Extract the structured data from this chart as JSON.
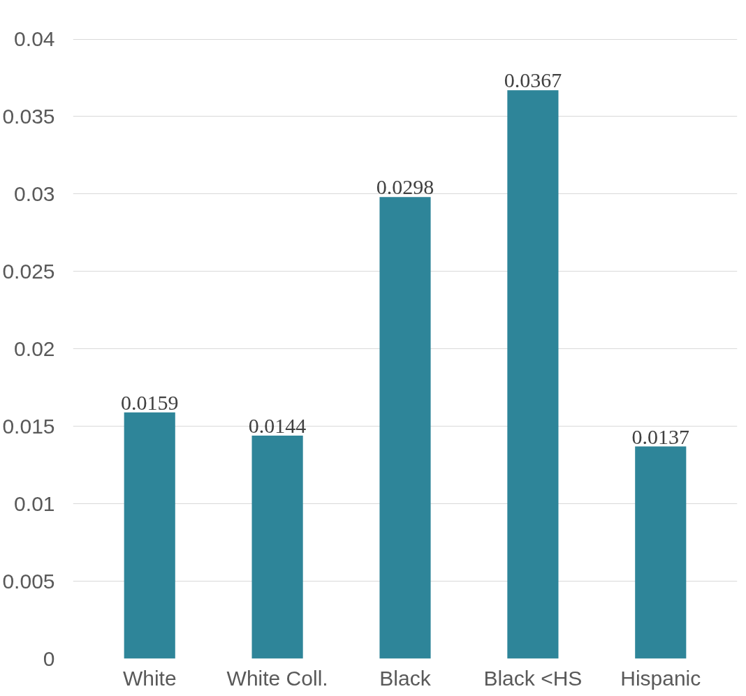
{
  "chart_data": {
    "type": "bar",
    "categories": [
      "White",
      "White Coll.",
      "Black",
      "Black <HS",
      "Hispanic"
    ],
    "values": [
      0.0159,
      0.0144,
      0.0298,
      0.0367,
      0.0137
    ],
    "color": "#2e8599",
    "ylim": [
      0,
      0.04
    ],
    "yticks": [
      0,
      0.005,
      0.01,
      0.015,
      0.02,
      0.025,
      0.03,
      0.035,
      0.04
    ],
    "grid": "y",
    "data_labels": true
  }
}
